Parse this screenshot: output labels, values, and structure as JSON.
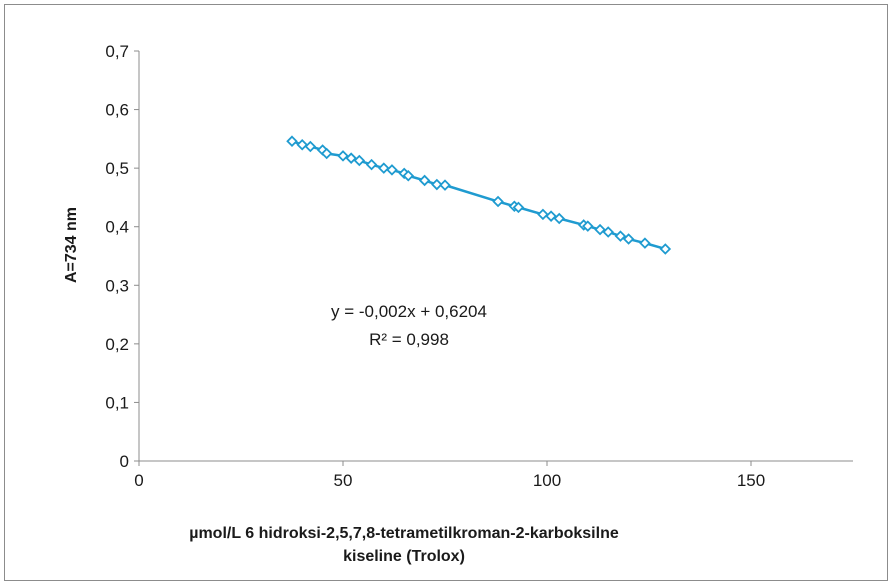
{
  "chart_data": {
    "type": "scatter",
    "title": "",
    "xlabel_line1": "µmol/L 6 hidroksi-2,5,7,8-tetrametilkroman-2-karboksilne",
    "xlabel_line2": "kiseline (Trolox)",
    "ylabel": "A=734 nm",
    "xlim": [
      0,
      175
    ],
    "ylim": [
      0,
      0.7
    ],
    "x_ticks": [
      "0",
      "50",
      "100",
      "150"
    ],
    "y_ticks": [
      "0",
      "0,1",
      "0,2",
      "0,3",
      "0,4",
      "0,5",
      "0,6",
      "0,7"
    ],
    "grid": false,
    "legend": "none",
    "series": [
      {
        "color": "#1f9bd0",
        "marker": "diamond",
        "line": true,
        "x": [
          37.5,
          40,
          42,
          45,
          46,
          50,
          52,
          54,
          57,
          60,
          62,
          65,
          66,
          70,
          73,
          75,
          88,
          92,
          93,
          99,
          101,
          103,
          109,
          110,
          113,
          115,
          118,
          120,
          124,
          129
        ],
        "y": [
          0.546,
          0.54,
          0.537,
          0.531,
          0.525,
          0.521,
          0.517,
          0.513,
          0.506,
          0.5,
          0.497,
          0.491,
          0.487,
          0.479,
          0.472,
          0.471,
          0.443,
          0.435,
          0.433,
          0.421,
          0.418,
          0.414,
          0.403,
          0.401,
          0.395,
          0.391,
          0.384,
          0.379,
          0.372,
          0.362
        ]
      }
    ],
    "annotation": {
      "equation": "y = -0,002x + 0,6204",
      "r2": "R² = 0,998"
    }
  }
}
